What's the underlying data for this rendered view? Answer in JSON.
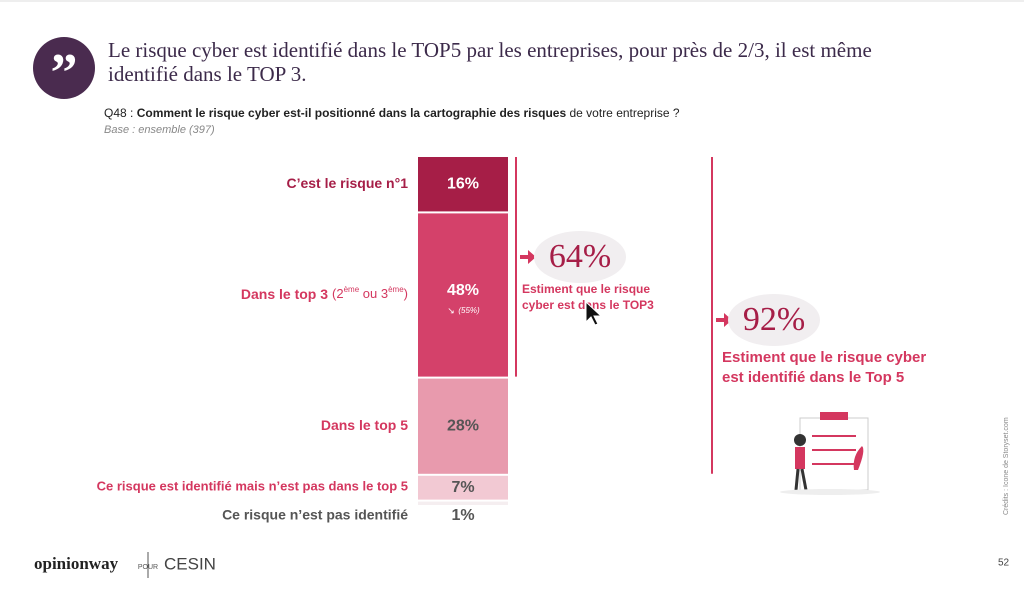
{
  "header": {
    "title_lines": [
      "Le risque cyber est identifié dans le TOP5 par les entreprises, pour près de 2/3, il est même",
      "identifié dans le TOP 3."
    ],
    "question_code": "Q48 :",
    "question_bold": "Comment le risque cyber est-il positionné dans la cartographie des risques",
    "question_rest": "de votre entreprise ?",
    "base": "Base : ensemble (397)"
  },
  "chart_data": {
    "type": "stacked-bar",
    "series": [
      {
        "name": "C’est le risque n°1",
        "color": "#a61e47",
        "label_color": "#a61e47",
        "value_color": "#ffffff",
        "values": [
          16
        ],
        "value_labels": [
          "16%"
        ]
      },
      {
        "name": "Dans le top 3",
        "name_note": [
          "(2",
          "ème",
          " ou 3",
          "ème",
          ")"
        ],
        "color": "#d4416a",
        "label_color": "#d4375f",
        "value_color": "#ffffff",
        "values": [
          48
        ],
        "value_labels": [
          "48%"
        ],
        "trend_label": "(55%)"
      },
      {
        "name": "Dans le top 5",
        "color": "#e89aad",
        "label_color": "#d4375f",
        "value_color": "#555555",
        "values": [
          28
        ],
        "value_labels": [
          "28%"
        ]
      },
      {
        "name": "Ce risque est identifié mais n’est pas dans le top 5",
        "color": "#f2c9d3",
        "label_color": "#d4375f",
        "value_color": "#555555",
        "values": [
          7
        ],
        "value_labels": [
          "7%"
        ]
      },
      {
        "name": "Ce risque n’est pas identifié",
        "color": "#f5eef0",
        "label_color": "#555555",
        "value_color": "#555555",
        "values": [
          1
        ],
        "value_labels": [
          "1%"
        ]
      }
    ],
    "annotations": [
      {
        "label": "64%",
        "text": [
          "Estiment que le risque",
          "cyber est dans le TOP3"
        ]
      },
      {
        "label": "92%",
        "text": [
          "Estiment que le risque cyber",
          "est identifié dans le Top 5"
        ]
      }
    ]
  },
  "footer": {
    "brand": "opinionway",
    "pour": "POUR",
    "client": "CESIN",
    "page": "52",
    "credits": "Crédits : Icone de Storyset.com"
  }
}
